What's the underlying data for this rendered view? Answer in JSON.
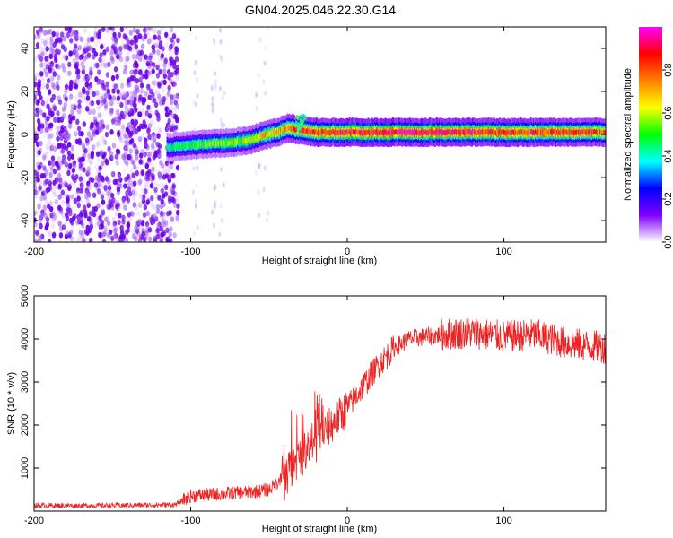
{
  "title": "GN04.2025.046.22.30.G14",
  "chart_data": [
    {
      "type": "heatmap",
      "xlabel": "Height of straight line (km)",
      "ylabel": "Frequency (Hz)",
      "xlim": [
        -200,
        165
      ],
      "ylim": [
        -50,
        50
      ],
      "x_ticks": [
        -200,
        -100,
        0,
        100
      ],
      "y_ticks": [
        -40,
        -20,
        0,
        20,
        40
      ],
      "colorbar": {
        "label": "Normalized spectral amplitude",
        "range": [
          0,
          1
        ],
        "ticks": [
          "0.0",
          "0.2",
          "0.4",
          "0.6",
          "0.8"
        ],
        "colors": [
          "#ffffff",
          "#8000ff",
          "#0000ff",
          "#00ffff",
          "#00ff00",
          "#ffff00",
          "#ff8000",
          "#ff0000",
          "#ff00ff"
        ]
      },
      "ridge": {
        "x": [
          -115,
          -100,
          -80,
          -65,
          -55,
          -45,
          -38,
          -30,
          -20,
          0,
          50,
          100,
          130,
          165
        ],
        "freq": [
          -6,
          -5,
          -4,
          -3,
          -1,
          1,
          3,
          2,
          1,
          1,
          1,
          1,
          1,
          1
        ],
        "amplitude": [
          0.45,
          0.5,
          0.55,
          0.6,
          0.65,
          0.7,
          0.75,
          0.8,
          0.85,
          0.9,
          0.9,
          0.85,
          0.85,
          0.8
        ]
      },
      "noise_region_x": [
        -200,
        -108
      ]
    },
    {
      "type": "line",
      "xlabel": "Height of straight line (km)",
      "ylabel": "SNR (10 * v/v)",
      "xlim": [
        -200,
        165
      ],
      "ylim": [
        0,
        5000
      ],
      "x_ticks": [
        -200,
        -100,
        0,
        100
      ],
      "y_ticks": [
        1000,
        2000,
        3000,
        4000,
        5000
      ],
      "series": [
        {
          "color": "#ee2222",
          "x": [
            -200,
            -150,
            -110,
            -100,
            -80,
            -60,
            -50,
            -40,
            -30,
            -20,
            -10,
            0,
            10,
            20,
            30,
            40,
            50,
            60,
            80,
            100,
            120,
            140,
            165
          ],
          "values": [
            130,
            130,
            150,
            350,
            400,
            450,
            500,
            800,
            1300,
            1700,
            2000,
            2400,
            2900,
            3400,
            3800,
            4000,
            4050,
            4100,
            4150,
            4050,
            4100,
            3900,
            3800
          ]
        }
      ]
    }
  ]
}
